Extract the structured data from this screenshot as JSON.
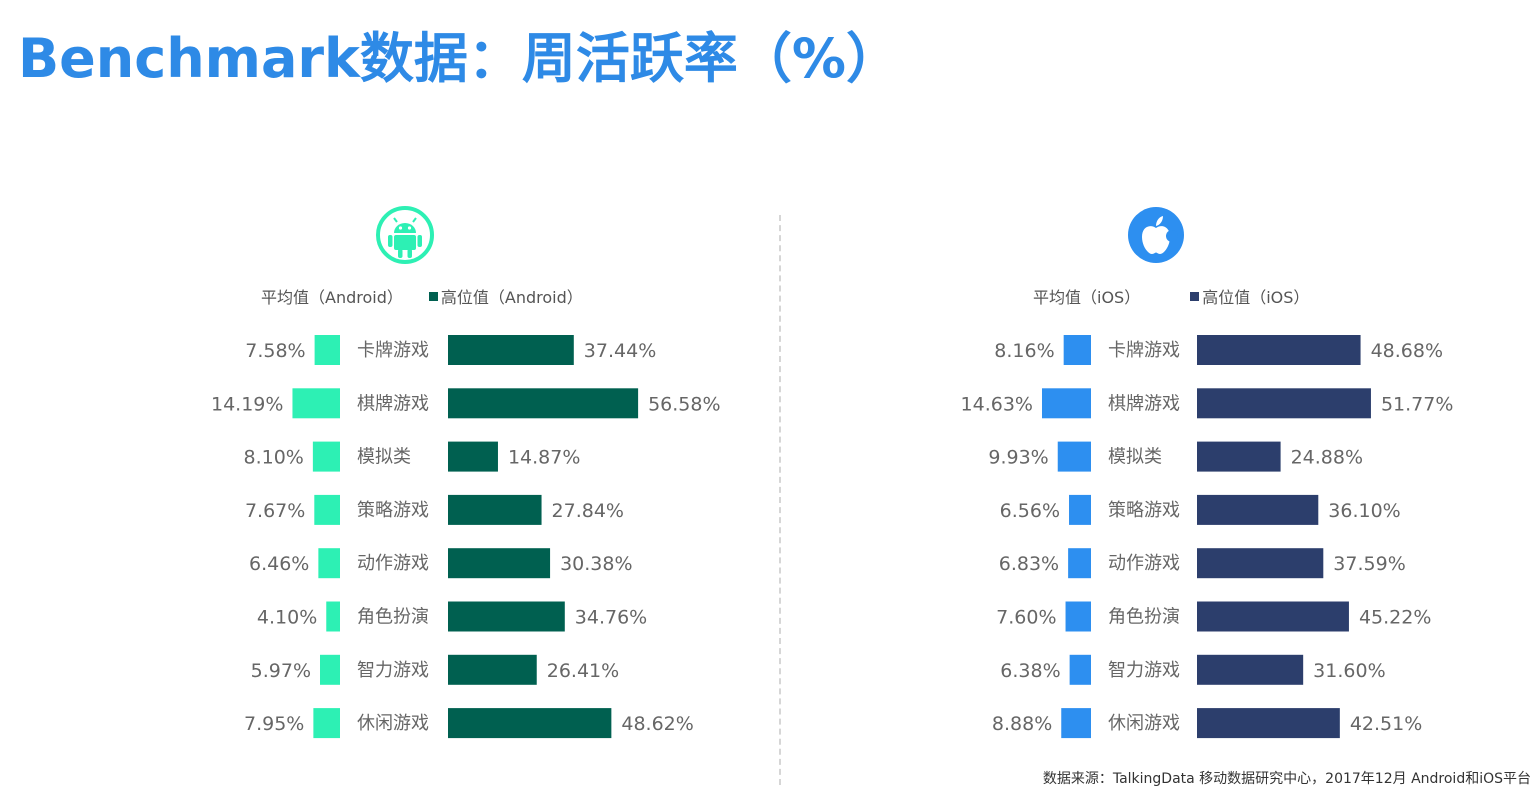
{
  "title": "Benchmark数据：周活跃率（%）",
  "colors": {
    "title": "#2e8ae6",
    "android_avg": "#2df0b4",
    "android_high": "#006050",
    "ios_avg": "#2d8ff0",
    "ios_high": "#2c3e6c"
  },
  "android": {
    "icon": "android-icon",
    "legend_avg": "平均值（Android）",
    "legend_high": "高位值（Android）"
  },
  "ios": {
    "icon": "apple-icon",
    "legend_avg": "平均值（iOS）",
    "legend_high": "高位值（iOS）"
  },
  "chart_data": [
    {
      "type": "bar",
      "platform": "Android",
      "categories": [
        "卡牌游戏",
        "棋牌游戏",
        "模拟类",
        "策略游戏",
        "动作游戏",
        "角色扮演",
        "智力游戏",
        "休闲游戏"
      ],
      "series": [
        {
          "name": "平均值（Android）",
          "values": [
            7.58,
            14.19,
            8.1,
            7.67,
            6.46,
            4.1,
            5.97,
            7.95
          ],
          "labels": [
            "7.58%",
            "14.19%",
            "8.10%",
            "7.67%",
            "6.46%",
            "4.10%",
            "5.97%",
            "7.95%"
          ]
        },
        {
          "name": "高位值（Android）",
          "values": [
            37.44,
            56.58,
            14.87,
            27.84,
            30.38,
            34.76,
            26.41,
            48.62
          ],
          "labels": [
            "37.44%",
            "56.58%",
            "14.87%",
            "27.84%",
            "30.38%",
            "34.76%",
            "26.41%",
            "48.62%"
          ]
        }
      ]
    },
    {
      "type": "bar",
      "platform": "iOS",
      "categories": [
        "卡牌游戏",
        "棋牌游戏",
        "模拟类",
        "策略游戏",
        "动作游戏",
        "角色扮演",
        "智力游戏",
        "休闲游戏"
      ],
      "series": [
        {
          "name": "平均值（iOS）",
          "values": [
            8.16,
            14.63,
            9.93,
            6.56,
            6.83,
            7.6,
            6.38,
            8.88
          ],
          "labels": [
            "8.16%",
            "14.63%",
            "9.93%",
            "6.56%",
            "6.83%",
            "7.60%",
            "6.38%",
            "8.88%"
          ]
        },
        {
          "name": "高位值（iOS）",
          "values": [
            48.68,
            51.77,
            24.88,
            36.1,
            37.59,
            45.22,
            31.6,
            42.51
          ],
          "labels": [
            "48.68%",
            "51.77%",
            "24.88%",
            "36.10%",
            "37.59%",
            "45.22%",
            "31.60%",
            "42.51%"
          ]
        }
      ]
    }
  ],
  "source": "数据来源：TalkingData 移动数据研究中心，2017年12月 Android和iOS平台"
}
